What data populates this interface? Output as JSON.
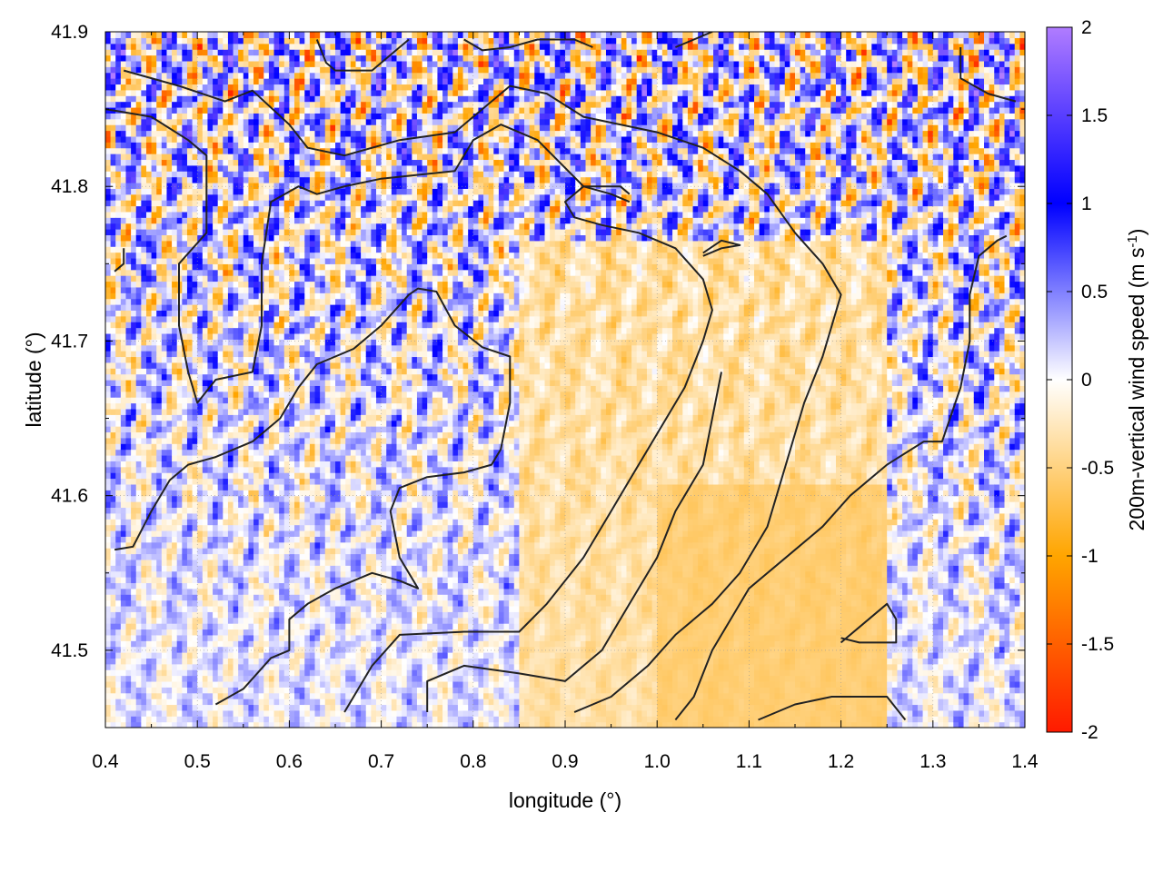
{
  "chart_data": {
    "type": "heatmap",
    "title": "",
    "xlabel": "longitude (°)",
    "ylabel": "latitude (°)",
    "colorbar_label": "200m-vertical wind speed (m s",
    "colorbar_label_sup": "-1",
    "colorbar_label_close": ")",
    "xlim": [
      0.4,
      1.4
    ],
    "ylim": [
      41.45,
      41.9
    ],
    "x_ticks": [
      0.4,
      0.5,
      0.6,
      0.7,
      0.8,
      0.9,
      1.0,
      1.1,
      1.2,
      1.3,
      1.4
    ],
    "x_tick_labels": [
      "0.4",
      "0.5",
      "0.6",
      "0.7",
      "0.8",
      "0.9",
      "1.0",
      "1.1",
      "1.2",
      "1.3",
      "1.4"
    ],
    "y_ticks": [
      41.5,
      41.6,
      41.7,
      41.8,
      41.9
    ],
    "y_tick_labels": [
      "41.5",
      "41.6",
      "41.7",
      "41.8",
      "41.9"
    ],
    "color_range": [
      -2,
      2
    ],
    "colorbar_ticks": [
      -2,
      -1.5,
      -1,
      -0.5,
      0,
      0.5,
      1,
      1.5,
      2
    ],
    "colorbar_tick_labels": [
      "-2",
      "-1.5",
      "-1",
      "-0.5",
      "0",
      "0.5",
      "1",
      "1.5",
      "2"
    ],
    "colormap_stops": [
      {
        "value": -2,
        "color": "#ff1a00"
      },
      {
        "value": -1,
        "color": "#ffa500"
      },
      {
        "value": 0,
        "color": "#ffffff"
      },
      {
        "value": 1,
        "color": "#0000ff"
      },
      {
        "value": 2,
        "color": "#b07cff"
      }
    ],
    "grid": true,
    "contour_color": "#222222",
    "contours": [
      [
        [
          0.42,
          41.875
        ],
        [
          0.48,
          41.865
        ],
        [
          0.53,
          41.855
        ],
        [
          0.56,
          41.862
        ],
        [
          0.6,
          41.84
        ],
        [
          0.62,
          41.825
        ],
        [
          0.66,
          41.82
        ],
        [
          0.72,
          41.83
        ],
        [
          0.78,
          41.835
        ],
        [
          0.81,
          41.85
        ],
        [
          0.84,
          41.865
        ],
        [
          0.88,
          41.86
        ],
        [
          0.92,
          41.845
        ],
        [
          0.96,
          41.84
        ],
        [
          1.0,
          41.835
        ],
        [
          1.05,
          41.825
        ],
        [
          1.09,
          41.81
        ],
        [
          1.12,
          41.795
        ],
        [
          1.15,
          41.77
        ],
        [
          1.18,
          41.75
        ],
        [
          1.2,
          41.73
        ],
        [
          1.18,
          41.69
        ],
        [
          1.16,
          41.66
        ],
        [
          1.14,
          41.62
        ],
        [
          1.12,
          41.58
        ],
        [
          1.09,
          41.55
        ],
        [
          1.06,
          41.53
        ],
        [
          1.02,
          41.51
        ],
        [
          0.99,
          41.49
        ],
        [
          0.95,
          41.47
        ],
        [
          0.91,
          41.46
        ]
      ],
      [
        [
          0.4,
          41.85
        ],
        [
          0.45,
          41.845
        ],
        [
          0.49,
          41.83
        ],
        [
          0.51,
          41.82
        ],
        [
          0.51,
          41.77
        ],
        [
          0.48,
          41.75
        ],
        [
          0.48,
          41.71
        ],
        [
          0.49,
          41.68
        ],
        [
          0.5,
          41.66
        ],
        [
          0.52,
          41.675
        ],
        [
          0.56,
          41.68
        ],
        [
          0.57,
          41.71
        ],
        [
          0.57,
          41.75
        ],
        [
          0.58,
          41.79
        ],
        [
          0.61,
          41.8
        ],
        [
          0.63,
          41.795
        ],
        [
          0.66,
          41.8
        ],
        [
          0.7,
          41.805
        ],
        [
          0.78,
          41.81
        ],
        [
          0.8,
          41.83
        ],
        [
          0.83,
          41.84
        ],
        [
          0.87,
          41.83
        ],
        [
          0.92,
          41.8
        ],
        [
          0.95,
          41.795
        ],
        [
          0.97,
          41.79
        ]
      ],
      [
        [
          0.41,
          41.565
        ],
        [
          0.43,
          41.567
        ],
        [
          0.45,
          41.59
        ],
        [
          0.47,
          41.61
        ],
        [
          0.49,
          41.62
        ],
        [
          0.52,
          41.625
        ],
        [
          0.56,
          41.635
        ],
        [
          0.59,
          41.65
        ],
        [
          0.61,
          41.67
        ],
        [
          0.63,
          41.685
        ],
        [
          0.67,
          41.695
        ],
        [
          0.7,
          41.71
        ],
        [
          0.73,
          41.73
        ],
        [
          0.74,
          41.734
        ],
        [
          0.76,
          41.732
        ],
        [
          0.78,
          41.71
        ],
        [
          0.81,
          41.696
        ],
        [
          0.84,
          41.69
        ],
        [
          0.84,
          41.66
        ],
        [
          0.83,
          41.63
        ],
        [
          0.82,
          41.62
        ],
        [
          0.79,
          41.615
        ],
        [
          0.75,
          41.612
        ],
        [
          0.72,
          41.605
        ],
        [
          0.71,
          41.59
        ],
        [
          0.72,
          41.56
        ],
        [
          0.74,
          41.54
        ],
        [
          0.72,
          41.545
        ],
        [
          0.69,
          41.55
        ],
        [
          0.65,
          41.54
        ],
        [
          0.62,
          41.53
        ],
        [
          0.6,
          41.52
        ],
        [
          0.6,
          41.5
        ],
        [
          0.58,
          41.495
        ],
        [
          0.55,
          41.475
        ],
        [
          0.52,
          41.465
        ]
      ],
      [
        [
          0.66,
          41.46
        ],
        [
          0.69,
          41.49
        ],
        [
          0.72,
          41.51
        ],
        [
          0.79,
          41.512
        ],
        [
          0.85,
          41.512
        ],
        [
          0.88,
          41.53
        ],
        [
          0.92,
          41.56
        ],
        [
          0.95,
          41.59
        ],
        [
          0.97,
          41.61
        ],
        [
          1.0,
          41.64
        ],
        [
          1.03,
          41.67
        ],
        [
          1.05,
          41.7
        ],
        [
          1.06,
          41.72
        ],
        [
          1.05,
          41.74
        ],
        [
          1.02,
          41.76
        ],
        [
          0.98,
          41.77
        ],
        [
          0.94,
          41.775
        ],
        [
          0.91,
          41.78
        ],
        [
          0.9,
          41.79
        ],
        [
          0.92,
          41.8
        ],
        [
          0.96,
          41.8
        ],
        [
          0.97,
          41.795
        ]
      ],
      [
        [
          0.75,
          41.46
        ],
        [
          0.75,
          41.48
        ],
        [
          0.79,
          41.49
        ],
        [
          0.85,
          41.485
        ],
        [
          0.9,
          41.48
        ],
        [
          0.94,
          41.5
        ],
        [
          0.97,
          41.53
        ],
        [
          1.0,
          41.56
        ],
        [
          1.02,
          41.59
        ],
        [
          1.05,
          41.62
        ],
        [
          1.06,
          41.65
        ],
        [
          1.07,
          41.68
        ]
      ],
      [
        [
          1.02,
          41.455
        ],
        [
          1.04,
          41.47
        ],
        [
          1.06,
          41.5
        ],
        [
          1.08,
          41.52
        ],
        [
          1.1,
          41.54
        ],
        [
          1.14,
          41.56
        ],
        [
          1.18,
          41.58
        ],
        [
          1.21,
          41.6
        ],
        [
          1.25,
          41.62
        ],
        [
          1.29,
          41.635
        ],
        [
          1.31,
          41.635
        ],
        [
          1.33,
          41.67
        ],
        [
          1.34,
          41.7
        ],
        [
          1.34,
          41.73
        ],
        [
          1.35,
          41.755
        ],
        [
          1.37,
          41.765
        ],
        [
          1.38,
          41.768
        ]
      ],
      [
        [
          1.2,
          41.505
        ],
        [
          1.23,
          41.52
        ],
        [
          1.25,
          41.53
        ],
        [
          1.26,
          41.52
        ],
        [
          1.26,
          41.505
        ],
        [
          1.22,
          41.505
        ],
        [
          1.2,
          41.508
        ]
      ],
      [
        [
          1.11,
          41.455
        ],
        [
          1.15,
          41.465
        ],
        [
          1.19,
          41.47
        ],
        [
          1.25,
          41.47
        ],
        [
          1.27,
          41.455
        ]
      ],
      [
        [
          1.33,
          41.89
        ],
        [
          1.33,
          41.87
        ],
        [
          1.36,
          41.86
        ],
        [
          1.39,
          41.855
        ]
      ],
      [
        [
          0.63,
          41.895
        ],
        [
          0.64,
          41.88
        ],
        [
          0.65,
          41.875
        ],
        [
          0.69,
          41.875
        ],
        [
          0.72,
          41.89
        ],
        [
          0.73,
          41.895
        ]
      ],
      [
        [
          0.79,
          41.895
        ],
        [
          0.81,
          41.888
        ],
        [
          0.84,
          41.89
        ],
        [
          0.87,
          41.895
        ],
        [
          0.91,
          41.895
        ],
        [
          0.93,
          41.89
        ]
      ],
      [
        [
          1.05,
          41.755
        ],
        [
          1.07,
          41.76
        ],
        [
          1.09,
          41.762
        ],
        [
          1.07,
          41.765
        ],
        [
          1.05,
          41.757
        ]
      ],
      [
        [
          0.42,
          41.76
        ],
        [
          0.42,
          41.75
        ],
        [
          0.41,
          41.745
        ]
      ],
      [
        [
          1.02,
          41.89
        ],
        [
          1.04,
          41.895
        ],
        [
          1.06,
          41.9
        ]
      ]
    ]
  }
}
